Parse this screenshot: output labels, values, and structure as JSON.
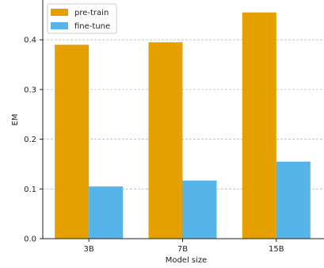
{
  "chart_data": {
    "type": "bar",
    "categories": [
      "3B",
      "7B",
      "15B"
    ],
    "series": [
      {
        "name": "pre-train",
        "values": [
          0.39,
          0.395,
          0.455
        ],
        "color": "#E5A000"
      },
      {
        "name": "fine-tune",
        "values": [
          0.105,
          0.117,
          0.155
        ],
        "color": "#56B4E9"
      }
    ],
    "xlabel": "Model size",
    "ylabel": "EM",
    "ylim": [
      0,
      0.48
    ],
    "yticks": [
      0.0,
      0.1,
      0.2,
      0.3,
      0.4
    ],
    "ytick_labels": [
      "0.0",
      "0.1",
      "0.2",
      "0.3",
      "0.4"
    ],
    "grid": "y-dashed",
    "legend_position": "top-left"
  }
}
